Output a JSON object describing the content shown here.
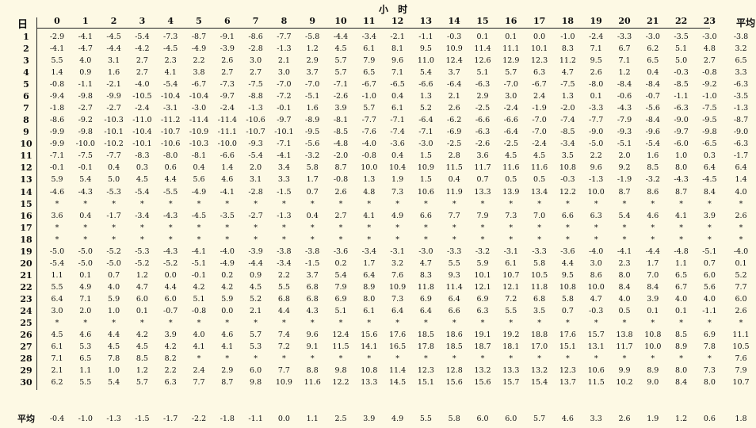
{
  "title": "小 时",
  "day_label": "日",
  "avg_label": "平均",
  "bottom_label": "平均",
  "hours": [
    "0",
    "1",
    "2",
    "3",
    "4",
    "5",
    "6",
    "7",
    "8",
    "9",
    "10",
    "11",
    "12",
    "13",
    "14",
    "15",
    "16",
    "17",
    "18",
    "19",
    "20",
    "21",
    "22",
    "23"
  ],
  "rows": [
    {
      "day": "1",
      "values": [
        "-2.9",
        "-4.1",
        "-4.5",
        "-5.4",
        "-7.3",
        "-8.7",
        "-9.1",
        "-8.6",
        "-7.7",
        "-5.8",
        "-4.4",
        "-3.4",
        "-2.1",
        "-1.1",
        "-0.3",
        "0.1",
        "0.1",
        "0.0",
        "-1.0",
        "-2.4",
        "-3.3",
        "-3.0",
        "-3.5",
        "-3.0"
      ],
      "avg": "-3.8"
    },
    {
      "day": "2",
      "values": [
        "-4.1",
        "-4.7",
        "-4.4",
        "-4.2",
        "-4.5",
        "-4.9",
        "-3.9",
        "-2.8",
        "-1.3",
        "1.2",
        "4.5",
        "6.1",
        "8.1",
        "9.5",
        "10.9",
        "11.4",
        "11.1",
        "10.1",
        "8.3",
        "7.1",
        "6.7",
        "6.2",
        "5.1",
        "4.8"
      ],
      "avg": "3.2"
    },
    {
      "day": "3",
      "values": [
        "5.5",
        "4.0",
        "3.1",
        "2.7",
        "2.3",
        "2.2",
        "2.6",
        "3.0",
        "2.1",
        "2.9",
        "5.7",
        "7.9",
        "9.6",
        "11.0",
        "12.4",
        "12.6",
        "12.9",
        "12.3",
        "11.2",
        "9.5",
        "7.1",
        "6.5",
        "5.0",
        "2.7"
      ],
      "avg": "6.5"
    },
    {
      "day": "4",
      "values": [
        "1.4",
        "0.9",
        "1.6",
        "2.7",
        "4.1",
        "3.8",
        "2.7",
        "2.7",
        "3.0",
        "3.7",
        "5.7",
        "6.5",
        "7.1",
        "5.4",
        "3.7",
        "5.1",
        "5.7",
        "6.3",
        "4.7",
        "2.6",
        "1.2",
        "0.4",
        "-0.3",
        "-0.8"
      ],
      "avg": "3.3"
    },
    {
      "day": "5",
      "values": [
        "-0.8",
        "-1.1",
        "-2.1",
        "-4.0",
        "-5.4",
        "-6.7",
        "-7.3",
        "-7.5",
        "-7.0",
        "-7.0",
        "-7.1",
        "-6.7",
        "-6.5",
        "-6.6",
        "-6.4",
        "-6.3",
        "-7.0",
        "-6.7",
        "-7.5",
        "-8.0",
        "-8.4",
        "-8.4",
        "-8.5",
        "-9.2"
      ],
      "avg": "-6.3"
    },
    {
      "day": "6",
      "values": [
        "-9.4",
        "-9.8",
        "-9.9",
        "-10.5",
        "-10.4",
        "-10.4",
        "-9.7",
        "-8.8",
        "-7.2",
        "-5.1",
        "-2.6",
        "-1.0",
        "0.4",
        "1.3",
        "2.1",
        "2.9",
        "3.0",
        "2.4",
        "1.3",
        "0.1",
        "-0.6",
        "-0.7",
        "-1.1",
        "-1.0"
      ],
      "avg": "-3.5"
    },
    {
      "day": "7",
      "values": [
        "-1.8",
        "-2.7",
        "-2.7",
        "-2.4",
        "-3.1",
        "-3.0",
        "-2.4",
        "-1.3",
        "-0.1",
        "1.6",
        "3.9",
        "5.7",
        "6.1",
        "5.2",
        "2.6",
        "-2.5",
        "-2.4",
        "-1.9",
        "-2.0",
        "-3.3",
        "-4.3",
        "-5.6",
        "-6.3",
        "-7.5"
      ],
      "avg": "-1.3"
    },
    {
      "day": "8",
      "values": [
        "-8.6",
        "-9.2",
        "-10.3",
        "-11.0",
        "-11.2",
        "-11.4",
        "-11.4",
        "-10.6",
        "-9.7",
        "-8.9",
        "-8.1",
        "-7.7",
        "-7.1",
        "-6.4",
        "-6.2",
        "-6.6",
        "-6.6",
        "-7.0",
        "-7.4",
        "-7.7",
        "-7.9",
        "-8.4",
        "-9.0",
        "-9.5"
      ],
      "avg": "-8.7"
    },
    {
      "day": "9",
      "values": [
        "-9.9",
        "-9.8",
        "-10.1",
        "-10.4",
        "-10.7",
        "-10.9",
        "-11.1",
        "-10.7",
        "-10.1",
        "-9.5",
        "-8.5",
        "-7.6",
        "-7.4",
        "-7.1",
        "-6.9",
        "-6.3",
        "-6.4",
        "-7.0",
        "-8.5",
        "-9.0",
        "-9.3",
        "-9.6",
        "-9.7",
        "-9.8"
      ],
      "avg": "-9.0"
    },
    {
      "day": "10",
      "values": [
        "-9.9",
        "-10.0",
        "-10.2",
        "-10.1",
        "-10.6",
        "-10.3",
        "-10.0",
        "-9.3",
        "-7.1",
        "-5.6",
        "-4.8",
        "-4.0",
        "-3.6",
        "-3.0",
        "-2.5",
        "-2.6",
        "-2.5",
        "-2.4",
        "-3.4",
        "-5.0",
        "-5.1",
        "-5.4",
        "-6.0",
        "-6.5"
      ],
      "avg": "-6.3"
    },
    {
      "day": "11",
      "values": [
        "-7.1",
        "-7.5",
        "-7.7",
        "-8.3",
        "-8.0",
        "-8.1",
        "-6.6",
        "-5.4",
        "-4.1",
        "-3.2",
        "-2.0",
        "-0.8",
        "0.4",
        "1.5",
        "2.8",
        "3.6",
        "4.5",
        "4.5",
        "3.5",
        "2.2",
        "2.0",
        "1.6",
        "1.0",
        "0.3"
      ],
      "avg": "-1.7"
    },
    {
      "day": "12",
      "values": [
        "-0.1",
        "-0.1",
        "0.4",
        "0.3",
        "0.6",
        "0.4",
        "1.4",
        "2.0",
        "3.4",
        "5.8",
        "8.7",
        "10.0",
        "10.4",
        "10.9",
        "11.5",
        "11.7",
        "11.6",
        "11.6",
        "10.8",
        "9.6",
        "9.2",
        "8.5",
        "8.0",
        "6.4"
      ],
      "avg": "6.4"
    },
    {
      "day": "13",
      "values": [
        "5.9",
        "5.4",
        "5.0",
        "4.5",
        "4.4",
        "5.6",
        "4.6",
        "3.1",
        "3.3",
        "1.7",
        "-0.8",
        "1.3",
        "1.9",
        "1.5",
        "0.4",
        "0.7",
        "0.5",
        "0.5",
        "-0.3",
        "-1.3",
        "-1.9",
        "-3.2",
        "-4.3",
        "-4.5"
      ],
      "avg": "1.4"
    },
    {
      "day": "14",
      "values": [
        "-4.6",
        "-4.3",
        "-5.3",
        "-5.4",
        "-5.5",
        "-4.9",
        "-4.1",
        "-2.8",
        "-1.5",
        "0.7",
        "2.6",
        "4.8",
        "7.3",
        "10.6",
        "11.9",
        "13.3",
        "13.9",
        "13.4",
        "12.2",
        "10.0",
        "8.7",
        "8.6",
        "8.7",
        "8.4"
      ],
      "avg": "4.0"
    },
    {
      "day": "15",
      "values": [
        "*",
        "*",
        "*",
        "*",
        "*",
        "*",
        "*",
        "*",
        "*",
        "*",
        "*",
        "*",
        "*",
        "*",
        "*",
        "*",
        "*",
        "*",
        "*",
        "*",
        "*",
        "*",
        "*",
        "*"
      ],
      "avg": "*"
    },
    {
      "day": "16",
      "values": [
        "3.6",
        "0.4",
        "-1.7",
        "-3.4",
        "-4.3",
        "-4.5",
        "-3.5",
        "-2.7",
        "-1.3",
        "0.4",
        "2.7",
        "4.1",
        "4.9",
        "6.6",
        "7.7",
        "7.9",
        "7.3",
        "7.0",
        "6.6",
        "6.3",
        "5.4",
        "4.6",
        "4.1",
        "3.9"
      ],
      "avg": "2.6"
    },
    {
      "day": "17",
      "values": [
        "*",
        "*",
        "*",
        "*",
        "*",
        "*",
        "*",
        "*",
        "*",
        "*",
        "*",
        "*",
        "*",
        "*",
        "*",
        "*",
        "*",
        "*",
        "*",
        "*",
        "*",
        "*",
        "*",
        "*"
      ],
      "avg": "*"
    },
    {
      "day": "18",
      "values": [
        "*",
        "*",
        "*",
        "*",
        "*",
        "*",
        "*",
        "*",
        "*",
        "*",
        "*",
        "*",
        "*",
        "*",
        "*",
        "*",
        "*",
        "*",
        "*",
        "*",
        "*",
        "*",
        "*",
        "*"
      ],
      "avg": "*"
    },
    {
      "day": "19",
      "values": [
        "-5.0",
        "-5.0",
        "-5.2",
        "-5.3",
        "-4.3",
        "-4.1",
        "-4.0",
        "-3.9",
        "-3.8",
        "-3.8",
        "-3.6",
        "-3.4",
        "-3.1",
        "-3.0",
        "-3.3",
        "-3.2",
        "-3.1",
        "-3.3",
        "-3.6",
        "-4.0",
        "-4.1",
        "-4.4",
        "-4.8",
        "-5.1"
      ],
      "avg": "-4.0"
    },
    {
      "day": "20",
      "values": [
        "-5.4",
        "-5.0",
        "-5.0",
        "-5.2",
        "-5.2",
        "-5.1",
        "-4.9",
        "-4.4",
        "-3.4",
        "-1.5",
        "0.2",
        "1.7",
        "3.2",
        "4.7",
        "5.5",
        "5.9",
        "6.1",
        "5.8",
        "4.4",
        "3.0",
        "2.3",
        "1.7",
        "1.1",
        "0.7"
      ],
      "avg": "0.1"
    },
    {
      "day": "21",
      "values": [
        "1.1",
        "0.1",
        "0.7",
        "1.2",
        "0.0",
        "-0.1",
        "0.2",
        "0.9",
        "2.2",
        "3.7",
        "5.4",
        "6.4",
        "7.6",
        "8.3",
        "9.3",
        "10.1",
        "10.7",
        "10.5",
        "9.5",
        "8.6",
        "8.0",
        "7.0",
        "6.5",
        "6.0"
      ],
      "avg": "5.2"
    },
    {
      "day": "22",
      "values": [
        "5.5",
        "4.9",
        "4.0",
        "4.7",
        "4.4",
        "4.2",
        "4.2",
        "4.5",
        "5.5",
        "6.8",
        "7.9",
        "8.9",
        "10.9",
        "11.8",
        "11.4",
        "12.1",
        "12.1",
        "11.8",
        "10.8",
        "10.0",
        "8.4",
        "8.4",
        "6.7",
        "5.6"
      ],
      "avg": "7.7"
    },
    {
      "day": "23",
      "values": [
        "6.4",
        "7.1",
        "5.9",
        "6.0",
        "6.0",
        "5.1",
        "5.9",
        "5.2",
        "6.8",
        "6.8",
        "6.9",
        "8.0",
        "7.3",
        "6.9",
        "6.4",
        "6.9",
        "7.2",
        "6.8",
        "5.8",
        "4.7",
        "4.0",
        "3.9",
        "4.0",
        "4.0"
      ],
      "avg": "6.0"
    },
    {
      "day": "24",
      "values": [
        "3.0",
        "2.0",
        "1.0",
        "0.1",
        "-0.7",
        "-0.8",
        "0.0",
        "2.1",
        "4.4",
        "4.3",
        "5.1",
        "6.1",
        "6.4",
        "6.4",
        "6.6",
        "6.3",
        "5.5",
        "3.5",
        "0.7",
        "-0.3",
        "0.5",
        "0.1",
        "0.1",
        "-1.1"
      ],
      "avg": "2.6"
    },
    {
      "day": "25",
      "values": [
        "*",
        "*",
        "*",
        "*",
        "*",
        "*",
        "*",
        "*",
        "*",
        "*",
        "*",
        "*",
        "*",
        "*",
        "*",
        "*",
        "*",
        "*",
        "*",
        "*",
        "*",
        "*",
        "*",
        "*"
      ],
      "avg": "*"
    },
    {
      "day": "26",
      "values": [
        "4.5",
        "4.6",
        "4.4",
        "4.2",
        "3.9",
        "4.0",
        "4.6",
        "5.7",
        "7.4",
        "9.6",
        "12.4",
        "15.6",
        "17.6",
        "18.5",
        "18.6",
        "19.1",
        "19.2",
        "18.8",
        "17.6",
        "15.7",
        "13.8",
        "10.8",
        "8.5",
        "6.9"
      ],
      "avg": "11.1"
    },
    {
      "day": "27",
      "values": [
        "6.1",
        "5.3",
        "4.5",
        "4.5",
        "4.2",
        "4.1",
        "4.1",
        "5.3",
        "7.2",
        "9.1",
        "11.5",
        "14.1",
        "16.5",
        "17.8",
        "18.5",
        "18.7",
        "18.1",
        "17.0",
        "15.1",
        "13.1",
        "11.7",
        "10.0",
        "8.9",
        "7.8"
      ],
      "avg": "10.5"
    },
    {
      "day": "28",
      "values": [
        "7.1",
        "6.5",
        "7.8",
        "8.5",
        "8.2",
        "*",
        "*",
        "*",
        "*",
        "*",
        "*",
        "*",
        "*",
        "*",
        "*",
        "*",
        "*",
        "*",
        "*",
        "*",
        "*",
        "*",
        "*",
        "*"
      ],
      "avg": "7.6"
    },
    {
      "day": "29",
      "values": [
        "2.1",
        "1.1",
        "1.0",
        "1.2",
        "2.2",
        "2.4",
        "2.9",
        "6.0",
        "7.7",
        "8.8",
        "9.8",
        "10.8",
        "11.4",
        "12.3",
        "12.8",
        "13.2",
        "13.3",
        "13.2",
        "12.3",
        "10.6",
        "9.9",
        "8.9",
        "8.0",
        "7.3"
      ],
      "avg": "7.9"
    },
    {
      "day": "30",
      "values": [
        "6.2",
        "5.5",
        "5.4",
        "5.7",
        "6.3",
        "7.7",
        "8.7",
        "9.8",
        "10.9",
        "11.6",
        "12.2",
        "13.3",
        "14.5",
        "15.1",
        "15.6",
        "15.6",
        "15.7",
        "15.4",
        "13.7",
        "11.5",
        "10.2",
        "9.0",
        "8.4",
        "8.0"
      ],
      "avg": "10.7"
    }
  ],
  "hourly_avg": [
    "-0.4",
    "-1.0",
    "-1.3",
    "-1.5",
    "-1.7",
    "-2.2",
    "-1.8",
    "-1.1",
    "0.0",
    "1.1",
    "2.5",
    "3.9",
    "4.9",
    "5.5",
    "5.8",
    "6.0",
    "6.0",
    "5.7",
    "4.6",
    "3.3",
    "2.6",
    "1.9",
    "1.2",
    "0.6"
  ],
  "overall_avg": "1.8"
}
